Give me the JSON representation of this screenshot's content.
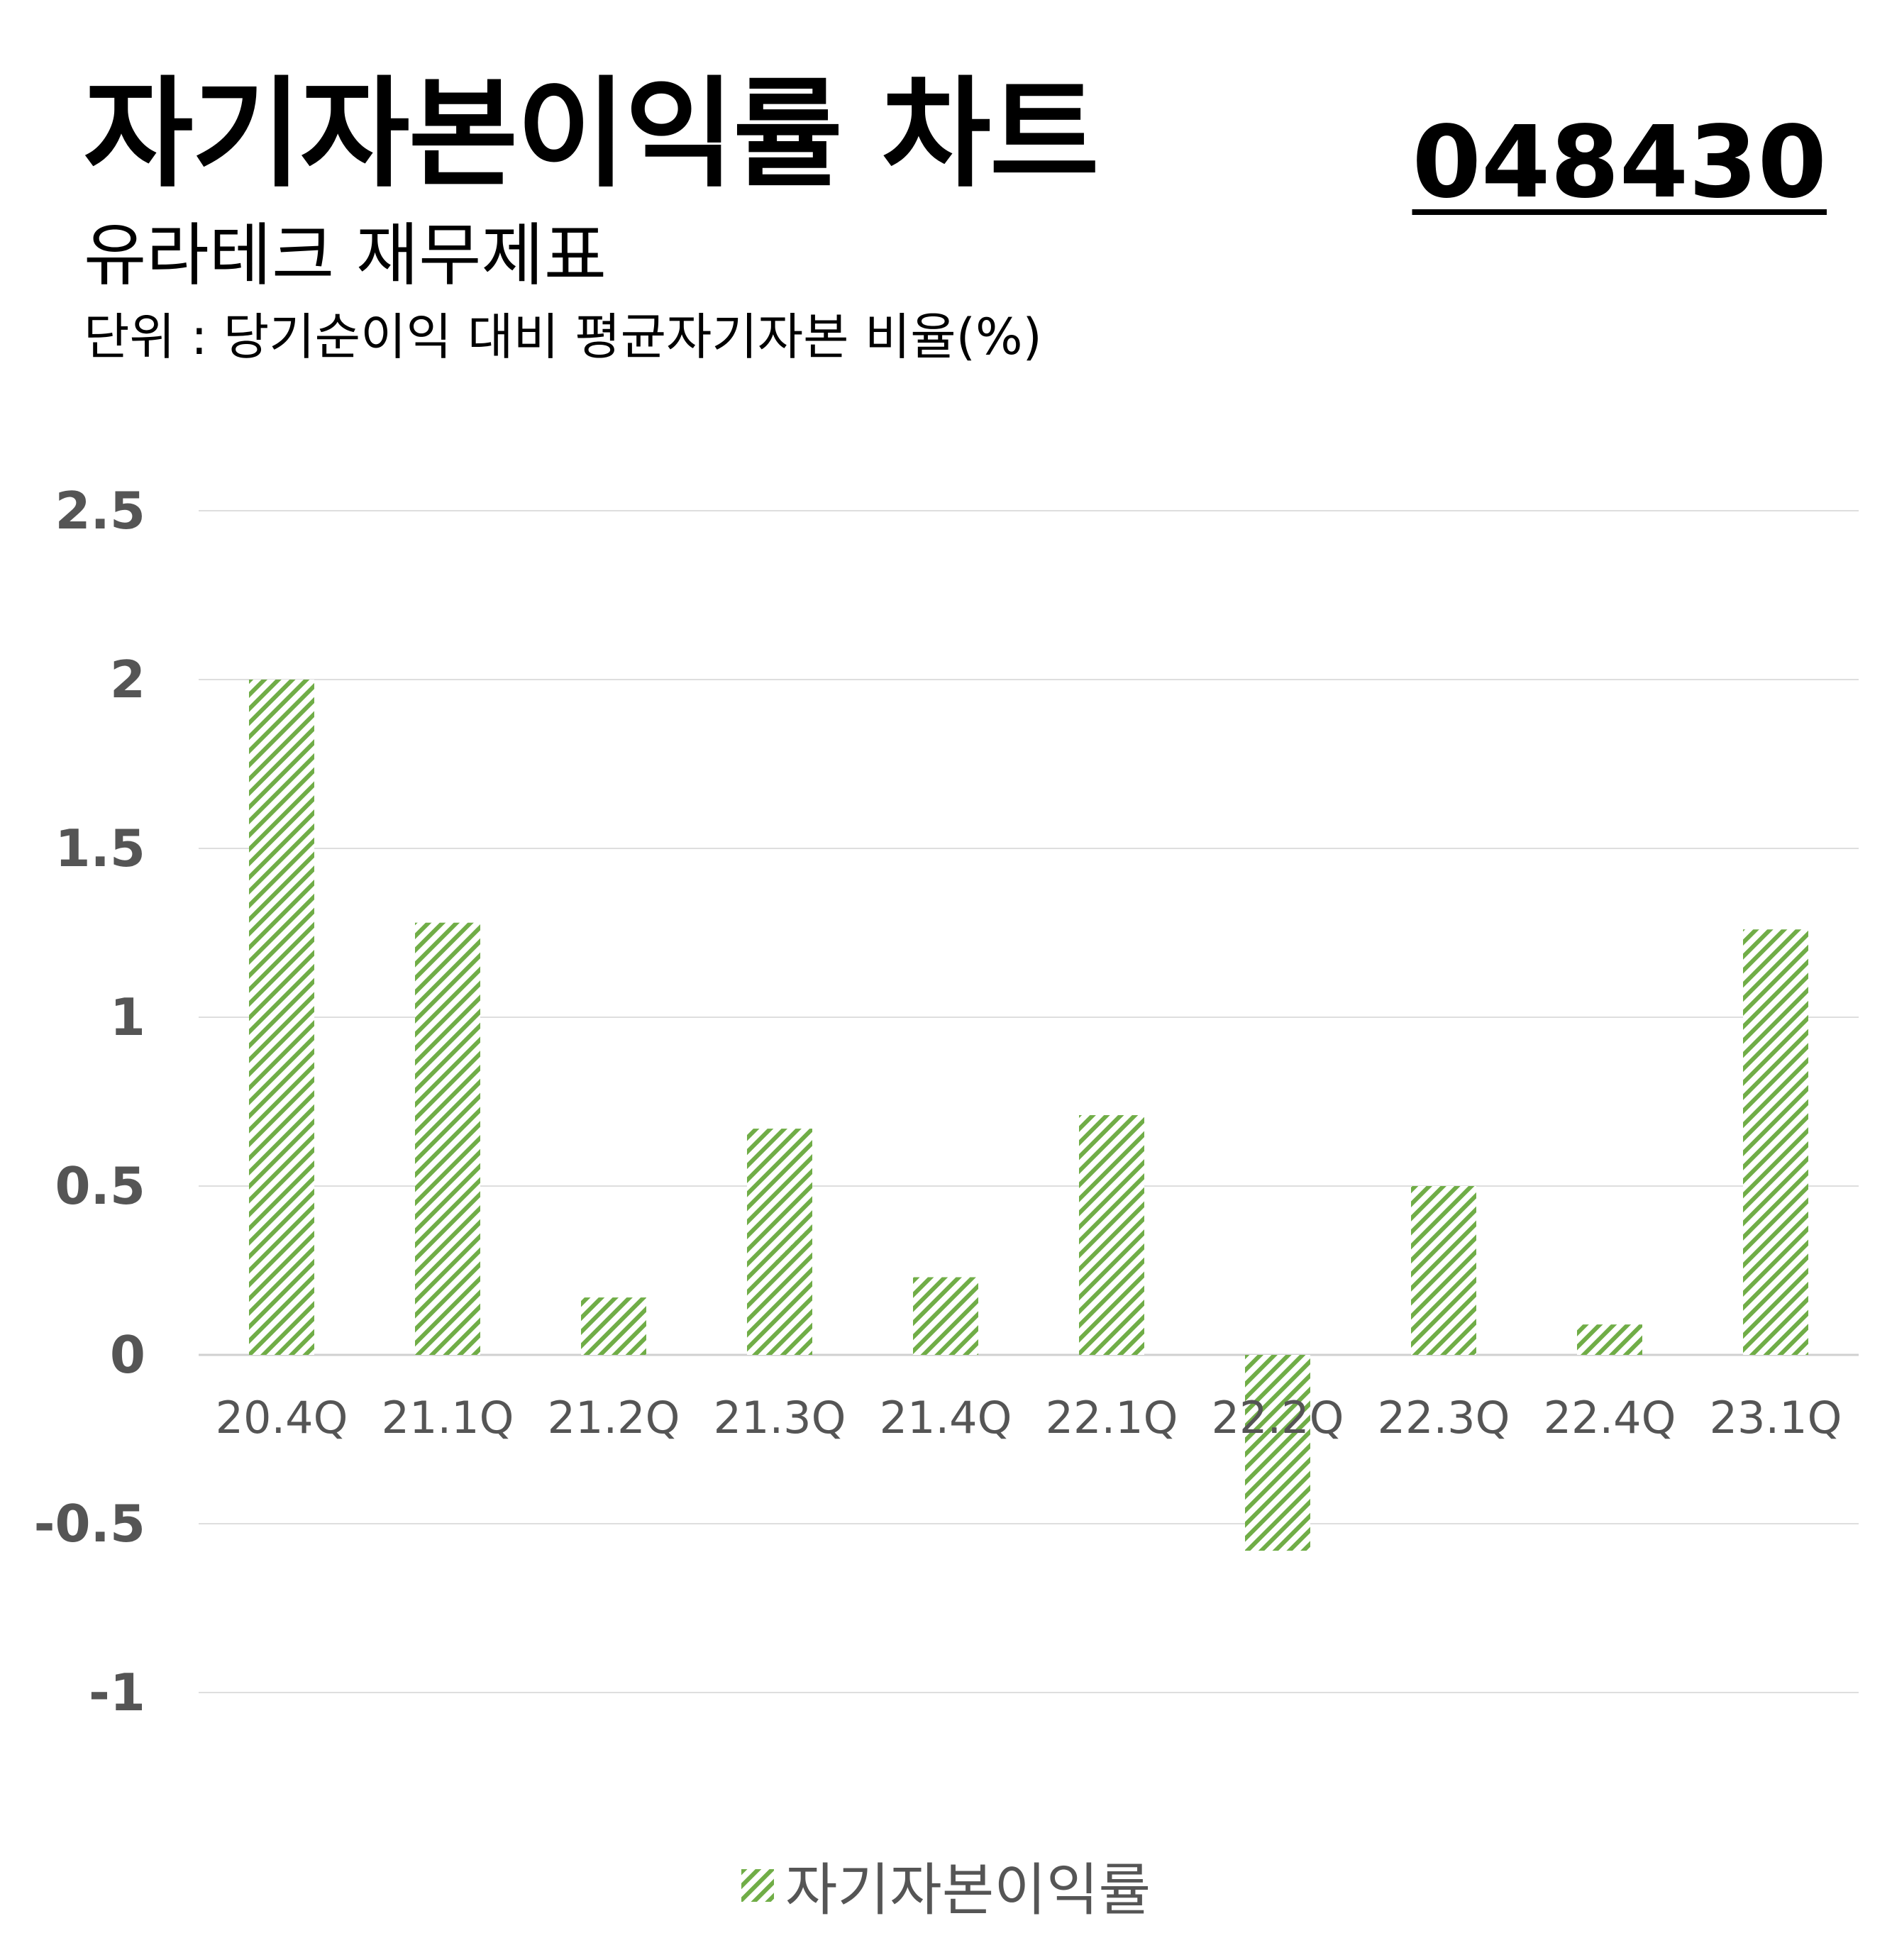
{
  "header": {
    "title": "자기자본이익률 차트",
    "code": "048430",
    "subtitle": "유라테크 재무제표",
    "unit": "단위 : 당기순이익 대비 평균자기자본 비율(%)"
  },
  "chart_data": {
    "type": "bar",
    "categories": [
      "20.4Q",
      "21.1Q",
      "21.2Q",
      "21.3Q",
      "21.4Q",
      "22.1Q",
      "22.2Q",
      "22.3Q",
      "22.4Q",
      "23.1Q"
    ],
    "series": [
      {
        "name": "자기자본이익률",
        "values": [
          2.0,
          1.28,
          0.17,
          0.67,
          0.23,
          0.71,
          -0.58,
          0.5,
          0.09,
          1.26
        ]
      }
    ],
    "yticks": [
      "2.5",
      "2",
      "1.5",
      "1",
      "0.5",
      "0",
      "-0.5",
      "-1"
    ],
    "ylim": [
      -1,
      2.5
    ],
    "grid": true,
    "legend_position": "bottom",
    "bar_color": "#70AD47",
    "bar_pattern": "diagonal-hatch"
  }
}
